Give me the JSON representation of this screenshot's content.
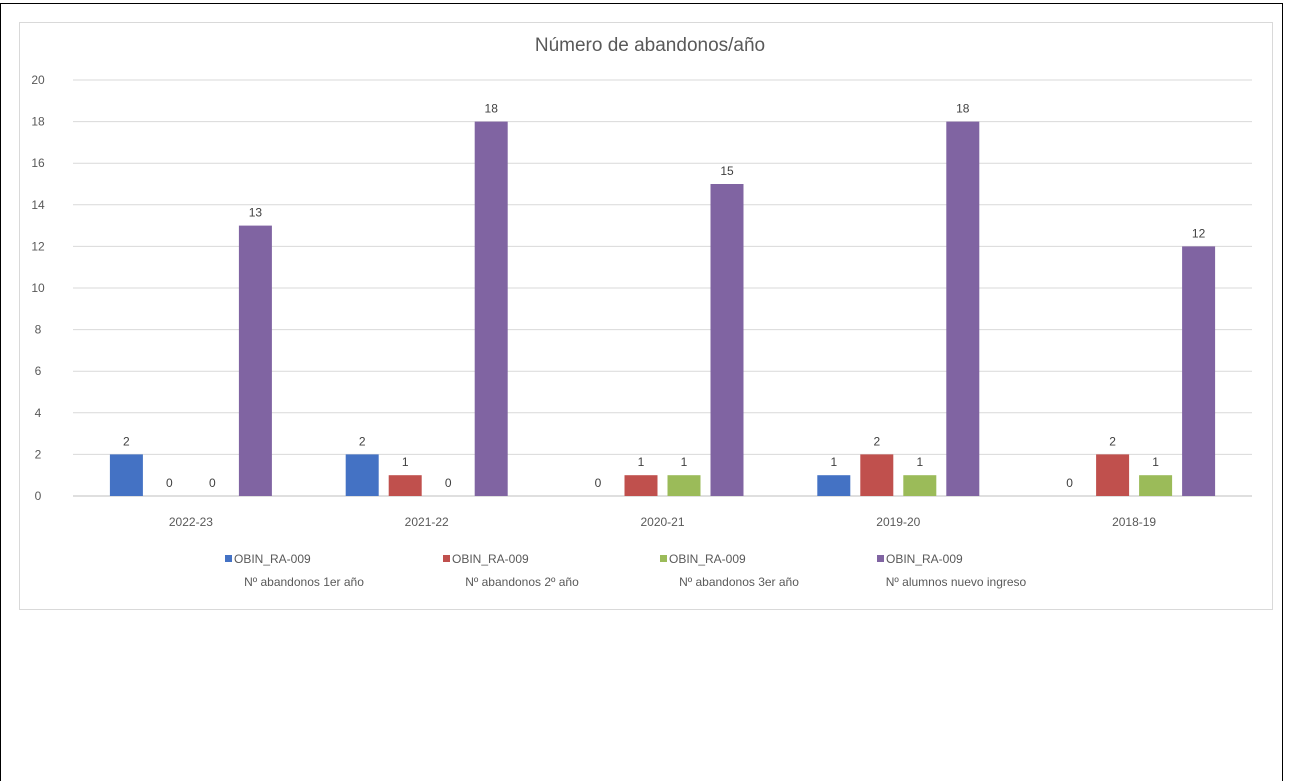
{
  "chart_data": {
    "type": "bar",
    "title": "Número de abandonos/año",
    "categories": [
      "2022-23",
      "2021-22",
      "2020-21",
      "2019-20",
      "2018-19"
    ],
    "ylim": [
      0,
      20
    ],
    "yticks": [
      0,
      2,
      4,
      6,
      8,
      10,
      12,
      14,
      16,
      18,
      20
    ],
    "grid": true,
    "legend_position": "bottom",
    "series": [
      {
        "name": "OBIN_RA-009",
        "subname": "Nº abandonos 1er año",
        "color": "#4472c4",
        "values": [
          2,
          2,
          0,
          1,
          0
        ]
      },
      {
        "name": "OBIN_RA-009",
        "subname": "Nº abandonos 2º año",
        "color": "#c0504d",
        "values": [
          0,
          1,
          1,
          2,
          2
        ]
      },
      {
        "name": "OBIN_RA-009",
        "subname": "Nº abandonos 3er año",
        "color": "#9bbb59",
        "values": [
          0,
          0,
          1,
          1,
          1
        ]
      },
      {
        "name": "OBIN_RA-009",
        "subname": "Nº alumnos nuevo ingreso",
        "color": "#8064a2",
        "values": [
          13,
          18,
          15,
          18,
          12
        ]
      }
    ]
  }
}
